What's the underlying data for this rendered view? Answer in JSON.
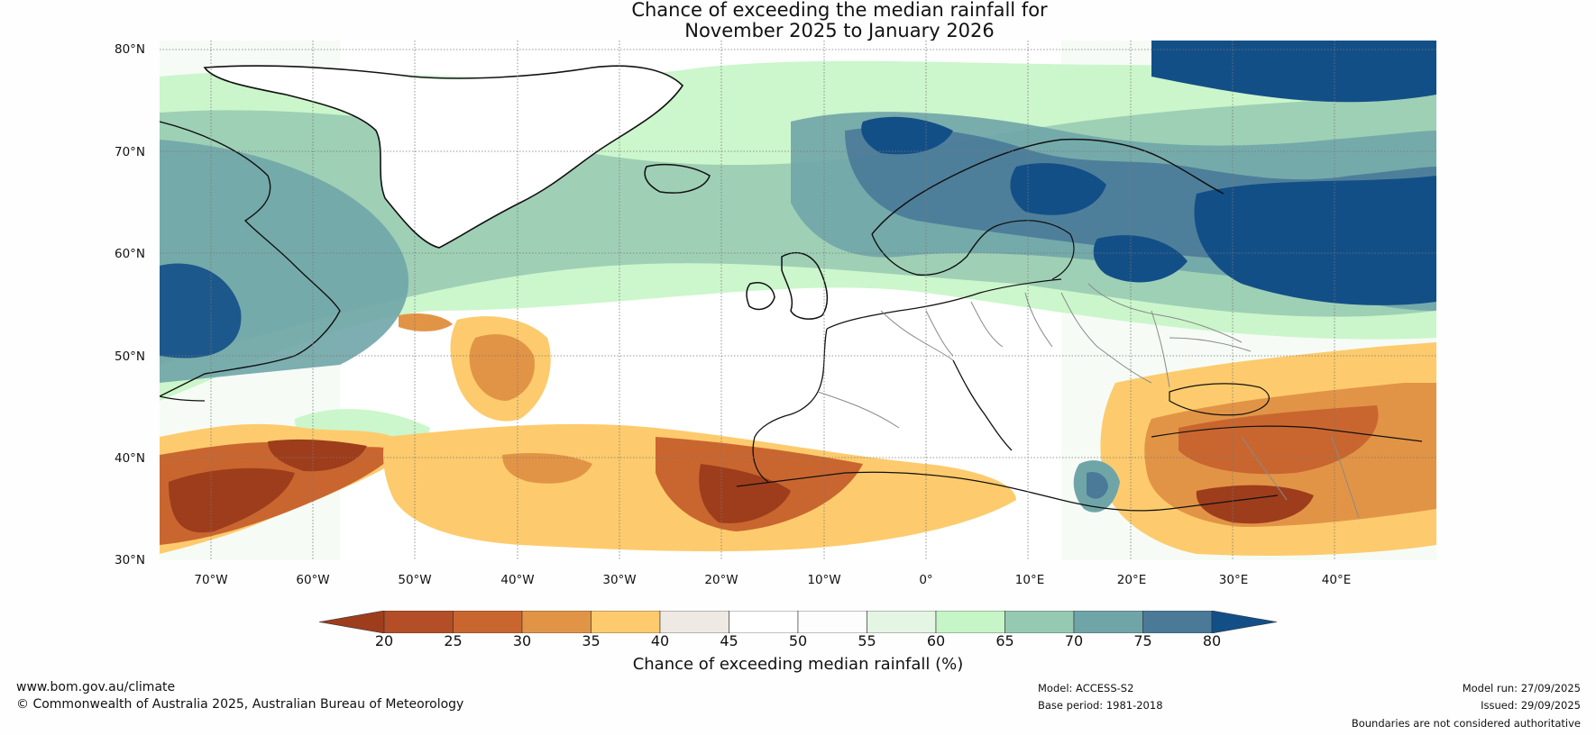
{
  "title": {
    "line1": "Chance of exceeding the median rainfall for",
    "line2": "November 2025 to January 2026"
  },
  "lat_labels": [
    "80°N",
    "70°N",
    "60°N",
    "50°N",
    "40°N",
    "30°N"
  ],
  "lon_labels": [
    "70°W",
    "60°W",
    "50°W",
    "40°W",
    "30°W",
    "20°W",
    "10°W",
    "0°",
    "10°E",
    "20°E",
    "30°E",
    "40°E"
  ],
  "colorbar": {
    "ticks": [
      "20",
      "25",
      "30",
      "35",
      "40",
      "45",
      "50",
      "55",
      "60",
      "65",
      "70",
      "75",
      "80"
    ],
    "colors": [
      "#9e3d1c",
      "#b34e26",
      "#c9662f",
      "#e29446",
      "#fdcb6d",
      "#efe9e3",
      "#ffffff",
      "#fdfdfd",
      "#e4f5e4",
      "#c6f5c7",
      "#96c9b2",
      "#70a5a8",
      "#4a7a98",
      "#134f87"
    ],
    "title": "Chance of exceeding median rainfall (%)"
  },
  "footer": {
    "website": "www.bom.gov.au/climate",
    "copyright": "© Commonwealth of Australia 2025, Australian Bureau of Meteorology",
    "model": "Model: ACCESS-S2",
    "base_period": "Base period: 1981-2018",
    "model_run": "Model run: 27/09/2025",
    "issued": "Issued: 29/09/2025",
    "disclaimer": "Boundaries are not considered authoritative"
  }
}
